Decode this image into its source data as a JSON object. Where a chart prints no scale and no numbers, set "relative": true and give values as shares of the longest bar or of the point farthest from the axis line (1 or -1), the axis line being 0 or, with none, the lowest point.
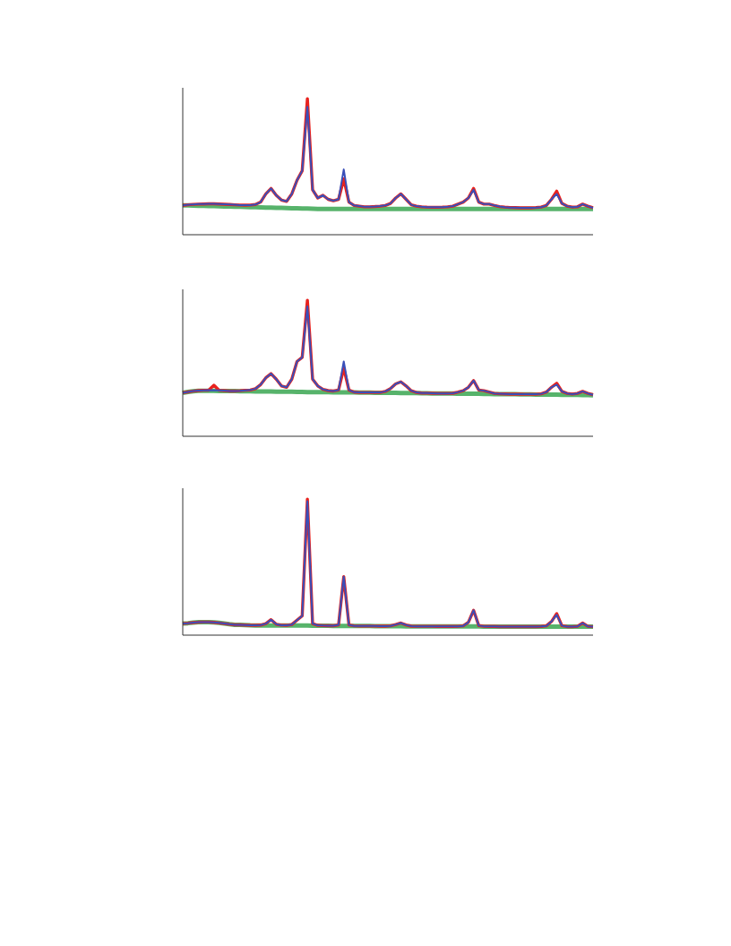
{
  "chart_data": [
    {
      "type": "line",
      "relative": true,
      "tick_labels": false,
      "grid": false,
      "legend": false,
      "marker": "none",
      "categories": [
        null,
        null,
        null,
        null,
        null,
        null,
        null,
        null,
        null,
        null,
        null,
        null,
        null,
        null,
        null,
        null,
        null,
        null,
        null,
        null,
        null,
        null,
        null,
        null,
        null,
        null,
        null,
        null,
        null,
        null,
        null,
        null,
        null,
        null,
        null,
        null,
        null,
        null,
        null,
        null,
        null,
        null,
        null,
        null,
        null,
        null,
        null,
        null,
        null,
        null,
        null,
        null,
        null,
        null,
        null,
        null,
        null,
        null,
        null,
        null,
        null,
        null,
        null,
        null,
        null,
        null,
        null,
        null,
        null,
        null,
        null,
        null,
        null,
        null,
        null,
        null,
        null,
        null,
        null,
        null
      ],
      "series": [
        {
          "color": "#1f9a3a",
          "values": [
            0.216,
            0.215,
            0.214,
            0.213,
            0.212,
            0.211,
            0.21,
            0.209,
            0.208,
            0.207,
            0.206,
            0.205,
            0.204,
            0.203,
            0.202,
            0.201,
            0.2,
            0.199,
            0.198,
            0.197,
            0.196,
            0.195,
            0.194,
            0.193,
            0.192,
            0.191,
            0.19,
            0.19,
            0.19,
            0.19,
            0.19,
            0.19,
            0.19,
            0.19,
            0.19,
            0.19,
            0.19,
            0.19,
            0.19,
            0.19,
            0.19,
            0.19,
            0.19,
            0.19,
            0.19,
            0.19,
            0.19,
            0.19,
            0.19,
            0.19,
            0.19,
            0.19,
            0.19,
            0.19,
            0.19,
            0.19,
            0.19,
            0.19,
            0.19,
            0.19,
            0.19,
            0.19,
            0.19,
            0.19,
            0.19,
            0.19,
            0.19,
            0.19,
            0.19,
            0.19,
            0.19,
            0.19,
            0.19,
            0.19,
            0.19,
            0.19,
            0.19,
            0.19,
            0.19,
            0.19
          ]
        },
        {
          "color": "#e8221e",
          "values": [
            0.216,
            0.22,
            0.223,
            0.225,
            0.226,
            0.227,
            0.227,
            0.226,
            0.224,
            0.222,
            0.22,
            0.218,
            0.217,
            0.218,
            0.222,
            0.24,
            0.3,
            0.34,
            0.29,
            0.255,
            0.245,
            0.3,
            0.4,
            0.47,
            1.0,
            0.33,
            0.27,
            0.29,
            0.26,
            0.25,
            0.26,
            0.41,
            0.24,
            0.215,
            0.21,
            0.205,
            0.205,
            0.207,
            0.21,
            0.215,
            0.23,
            0.27,
            0.3,
            0.26,
            0.22,
            0.21,
            0.205,
            0.203,
            0.202,
            0.202,
            0.203,
            0.205,
            0.21,
            0.225,
            0.24,
            0.27,
            0.34,
            0.24,
            0.225,
            0.225,
            0.215,
            0.207,
            0.203,
            0.2,
            0.199,
            0.198,
            0.198,
            0.198,
            0.2,
            0.203,
            0.215,
            0.26,
            0.32,
            0.23,
            0.21,
            0.203,
            0.205,
            0.225,
            0.21,
            0.198
          ]
        },
        {
          "color": "#3a4fb8",
          "values": [
            0.216,
            0.22,
            0.223,
            0.225,
            0.226,
            0.227,
            0.227,
            0.226,
            0.224,
            0.222,
            0.22,
            0.218,
            0.217,
            0.218,
            0.222,
            0.24,
            0.3,
            0.34,
            0.29,
            0.255,
            0.245,
            0.3,
            0.4,
            0.47,
            0.94,
            0.33,
            0.27,
            0.29,
            0.26,
            0.25,
            0.26,
            0.48,
            0.24,
            0.215,
            0.21,
            0.205,
            0.205,
            0.207,
            0.21,
            0.215,
            0.23,
            0.27,
            0.3,
            0.26,
            0.22,
            0.21,
            0.205,
            0.203,
            0.202,
            0.202,
            0.203,
            0.205,
            0.21,
            0.225,
            0.24,
            0.27,
            0.33,
            0.24,
            0.225,
            0.225,
            0.215,
            0.207,
            0.203,
            0.2,
            0.199,
            0.198,
            0.198,
            0.198,
            0.2,
            0.203,
            0.215,
            0.26,
            0.3,
            0.23,
            0.21,
            0.203,
            0.205,
            0.225,
            0.21,
            0.198
          ]
        }
      ]
    },
    {
      "type": "line",
      "relative": true,
      "tick_labels": false,
      "grid": false,
      "legend": false,
      "marker": "none",
      "categories": [
        null,
        null,
        null,
        null,
        null,
        null,
        null,
        null,
        null,
        null,
        null,
        null,
        null,
        null,
        null,
        null,
        null,
        null,
        null,
        null,
        null,
        null,
        null,
        null,
        null,
        null,
        null,
        null,
        null,
        null,
        null,
        null,
        null,
        null,
        null,
        null,
        null,
        null,
        null,
        null,
        null,
        null,
        null,
        null,
        null,
        null,
        null,
        null,
        null,
        null,
        null,
        null,
        null,
        null,
        null,
        null,
        null,
        null,
        null,
        null,
        null,
        null,
        null,
        null,
        null,
        null,
        null,
        null,
        null,
        null,
        null,
        null,
        null,
        null,
        null,
        null,
        null,
        null,
        null,
        null
      ],
      "series": [
        {
          "color": "#1f9a3a",
          "values": [
            0.32,
            0.326,
            0.331,
            0.334,
            0.335,
            0.334,
            0.334,
            0.333,
            0.333,
            0.332,
            0.332,
            0.331,
            0.331,
            0.331,
            0.33,
            0.33,
            0.329,
            0.329,
            0.328,
            0.328,
            0.327,
            0.327,
            0.326,
            0.326,
            0.325,
            0.325,
            0.325,
            0.324,
            0.324,
            0.323,
            0.323,
            0.323,
            0.322,
            0.322,
            0.321,
            0.321,
            0.321,
            0.32,
            0.32,
            0.319,
            0.319,
            0.319,
            0.318,
            0.318,
            0.317,
            0.317,
            0.316,
            0.316,
            0.315,
            0.315,
            0.314,
            0.314,
            0.314,
            0.313,
            0.313,
            0.312,
            0.312,
            0.312,
            0.311,
            0.311,
            0.31,
            0.31,
            0.31,
            0.309,
            0.309,
            0.308,
            0.308,
            0.308,
            0.307,
            0.307,
            0.306,
            0.306,
            0.306,
            0.305,
            0.305,
            0.304,
            0.304,
            0.303,
            0.303,
            0.302
          ]
        },
        {
          "color": "#e8221e",
          "values": [
            0.32,
            0.326,
            0.332,
            0.336,
            0.338,
            0.339,
            0.375,
            0.338,
            0.336,
            0.333,
            0.333,
            0.335,
            0.338,
            0.34,
            0.35,
            0.38,
            0.43,
            0.46,
            0.42,
            0.37,
            0.36,
            0.42,
            0.55,
            0.58,
            1.0,
            0.42,
            0.37,
            0.345,
            0.336,
            0.333,
            0.34,
            0.5,
            0.34,
            0.324,
            0.322,
            0.322,
            0.322,
            0.322,
            0.322,
            0.33,
            0.35,
            0.385,
            0.4,
            0.37,
            0.335,
            0.322,
            0.318,
            0.317,
            0.316,
            0.315,
            0.315,
            0.315,
            0.316,
            0.325,
            0.335,
            0.36,
            0.41,
            0.34,
            0.335,
            0.325,
            0.315,
            0.312,
            0.311,
            0.31,
            0.31,
            0.31,
            0.309,
            0.309,
            0.309,
            0.312,
            0.325,
            0.36,
            0.39,
            0.33,
            0.315,
            0.31,
            0.315,
            0.33,
            0.315,
            0.305
          ]
        },
        {
          "color": "#3a4fb8",
          "values": [
            0.32,
            0.326,
            0.332,
            0.336,
            0.338,
            0.339,
            0.338,
            0.338,
            0.336,
            0.333,
            0.333,
            0.335,
            0.338,
            0.34,
            0.35,
            0.38,
            0.43,
            0.46,
            0.42,
            0.37,
            0.36,
            0.42,
            0.55,
            0.58,
            0.955,
            0.42,
            0.37,
            0.345,
            0.336,
            0.333,
            0.34,
            0.55,
            0.34,
            0.324,
            0.322,
            0.322,
            0.322,
            0.322,
            0.322,
            0.33,
            0.35,
            0.385,
            0.4,
            0.37,
            0.335,
            0.322,
            0.318,
            0.317,
            0.316,
            0.315,
            0.315,
            0.315,
            0.316,
            0.325,
            0.335,
            0.36,
            0.41,
            0.34,
            0.335,
            0.325,
            0.315,
            0.312,
            0.311,
            0.31,
            0.31,
            0.31,
            0.309,
            0.309,
            0.309,
            0.312,
            0.325,
            0.36,
            0.38,
            0.33,
            0.315,
            0.31,
            0.315,
            0.33,
            0.315,
            0.305
          ]
        }
      ]
    },
    {
      "type": "line",
      "relative": true,
      "tick_labels": false,
      "grid": false,
      "legend": false,
      "marker": "none",
      "categories": [
        null,
        null,
        null,
        null,
        null,
        null,
        null,
        null,
        null,
        null,
        null,
        null,
        null,
        null,
        null,
        null,
        null,
        null,
        null,
        null,
        null,
        null,
        null,
        null,
        null,
        null,
        null,
        null,
        null,
        null,
        null,
        null,
        null,
        null,
        null,
        null,
        null,
        null,
        null,
        null,
        null,
        null,
        null,
        null,
        null,
        null,
        null,
        null,
        null,
        null,
        null,
        null,
        null,
        null,
        null,
        null,
        null,
        null,
        null,
        null,
        null,
        null,
        null,
        null,
        null,
        null,
        null,
        null,
        null,
        null,
        null,
        null,
        null,
        null,
        null,
        null,
        null,
        null,
        null,
        null
      ],
      "series": [
        {
          "color": "#1f9a3a",
          "values": [
            0.085,
            0.088,
            0.092,
            0.095,
            0.096,
            0.096,
            0.094,
            0.09,
            0.085,
            0.08,
            0.076,
            0.075,
            0.074,
            0.072,
            0.071,
            0.071,
            0.071,
            0.071,
            0.07,
            0.07,
            0.07,
            0.07,
            0.07,
            0.07,
            0.07,
            0.069,
            0.069,
            0.069,
            0.069,
            0.068,
            0.068,
            0.068,
            0.068,
            0.067,
            0.067,
            0.067,
            0.067,
            0.066,
            0.066,
            0.066,
            0.066,
            0.066,
            0.066,
            0.065,
            0.065,
            0.065,
            0.065,
            0.065,
            0.065,
            0.064,
            0.064,
            0.064,
            0.064,
            0.064,
            0.064,
            0.064,
            0.064,
            0.064,
            0.063,
            0.063,
            0.063,
            0.063,
            0.063,
            0.063,
            0.063,
            0.063,
            0.063,
            0.063,
            0.063,
            0.063,
            0.063,
            0.063,
            0.063,
            0.062,
            0.062,
            0.062,
            0.062,
            0.062,
            0.062,
            0.062
          ]
        },
        {
          "color": "#e8221e",
          "values": [
            0.085,
            0.088,
            0.092,
            0.095,
            0.096,
            0.096,
            0.094,
            0.09,
            0.085,
            0.08,
            0.076,
            0.076,
            0.074,
            0.072,
            0.072,
            0.074,
            0.085,
            0.114,
            0.08,
            0.073,
            0.072,
            0.078,
            0.11,
            0.142,
            1.0,
            0.085,
            0.072,
            0.07,
            0.069,
            0.069,
            0.075,
            0.43,
            0.075,
            0.068,
            0.067,
            0.067,
            0.067,
            0.067,
            0.066,
            0.066,
            0.068,
            0.078,
            0.089,
            0.075,
            0.066,
            0.065,
            0.065,
            0.065,
            0.065,
            0.064,
            0.064,
            0.064,
            0.064,
            0.065,
            0.068,
            0.095,
            0.183,
            0.07,
            0.065,
            0.064,
            0.064,
            0.063,
            0.063,
            0.063,
            0.063,
            0.063,
            0.063,
            0.063,
            0.063,
            0.064,
            0.068,
            0.1,
            0.158,
            0.07,
            0.063,
            0.062,
            0.065,
            0.089,
            0.065,
            0.062
          ]
        },
        {
          "color": "#3a4fb8",
          "values": [
            0.085,
            0.088,
            0.092,
            0.095,
            0.096,
            0.096,
            0.094,
            0.09,
            0.085,
            0.08,
            0.076,
            0.076,
            0.074,
            0.072,
            0.072,
            0.074,
            0.085,
            0.114,
            0.08,
            0.073,
            0.072,
            0.078,
            0.11,
            0.142,
            0.984,
            0.085,
            0.072,
            0.07,
            0.069,
            0.069,
            0.075,
            0.43,
            0.075,
            0.068,
            0.067,
            0.067,
            0.067,
            0.067,
            0.066,
            0.066,
            0.068,
            0.078,
            0.089,
            0.075,
            0.066,
            0.065,
            0.065,
            0.065,
            0.065,
            0.064,
            0.064,
            0.064,
            0.064,
            0.065,
            0.068,
            0.095,
            0.183,
            0.07,
            0.065,
            0.064,
            0.064,
            0.063,
            0.063,
            0.063,
            0.063,
            0.063,
            0.063,
            0.063,
            0.063,
            0.064,
            0.068,
            0.1,
            0.15,
            0.07,
            0.063,
            0.062,
            0.065,
            0.089,
            0.065,
            0.062
          ]
        }
      ]
    }
  ]
}
